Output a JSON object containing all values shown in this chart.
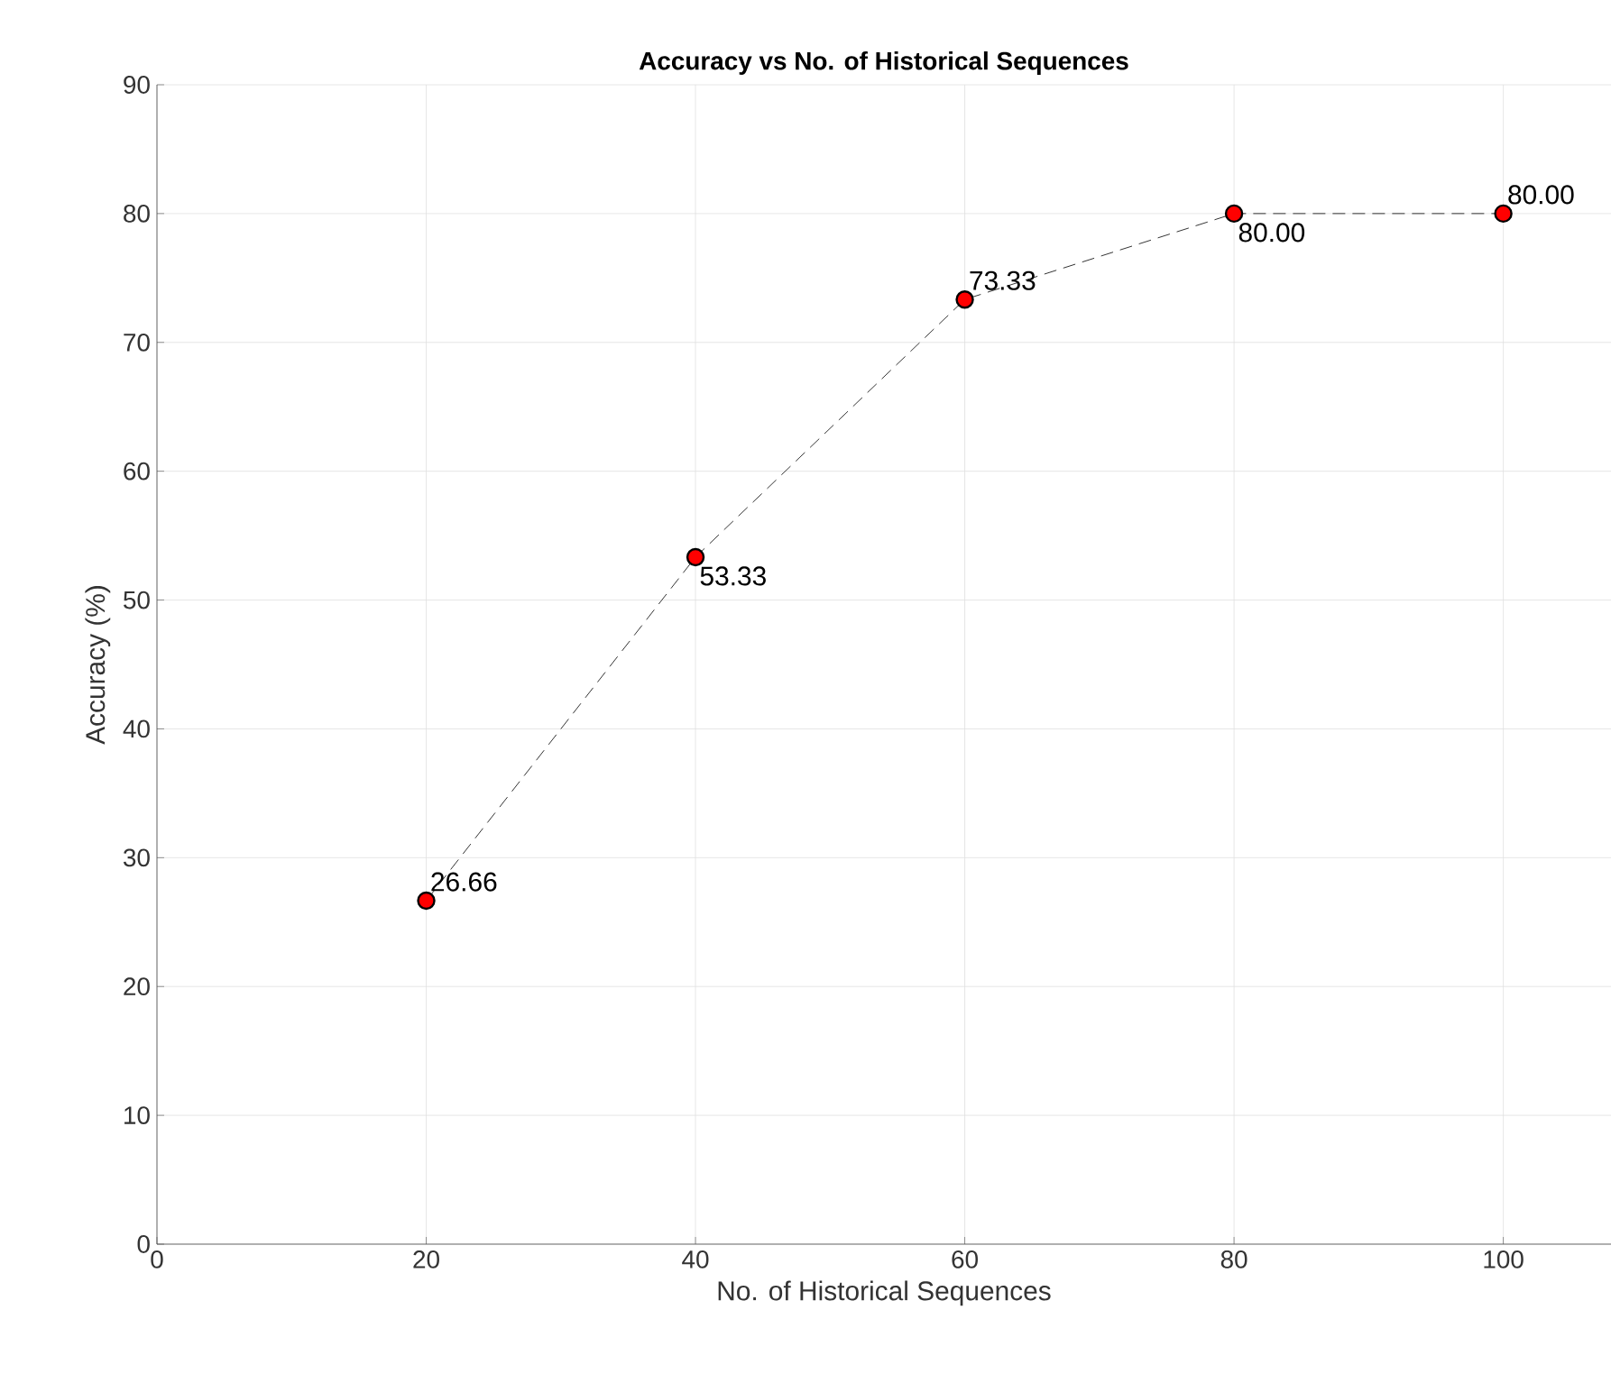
{
  "chart_data": {
    "type": "line",
    "title": "Accuracy vs No. of Historical Sequences",
    "xlabel": "No. of Historical Sequences",
    "ylabel": "Accuracy (%)",
    "x": [
      20,
      40,
      60,
      80,
      100
    ],
    "series": [
      {
        "color": "#ff0000",
        "values": [
          26.66,
          53.33,
          73.33,
          80.0,
          80.0
        ],
        "value_labels": [
          "26.66",
          "53.33",
          "73.33",
          "80.00",
          "80.00"
        ]
      }
    ],
    "xlim": [
      0,
      108
    ],
    "xticks": [
      0,
      20,
      40,
      60,
      80,
      100
    ],
    "ylim": [
      0,
      90
    ],
    "yticks": [
      0,
      10,
      20,
      30,
      40,
      50,
      60,
      70,
      80,
      90
    ],
    "grid": true,
    "marker": "circle",
    "line_style": "dashed"
  }
}
